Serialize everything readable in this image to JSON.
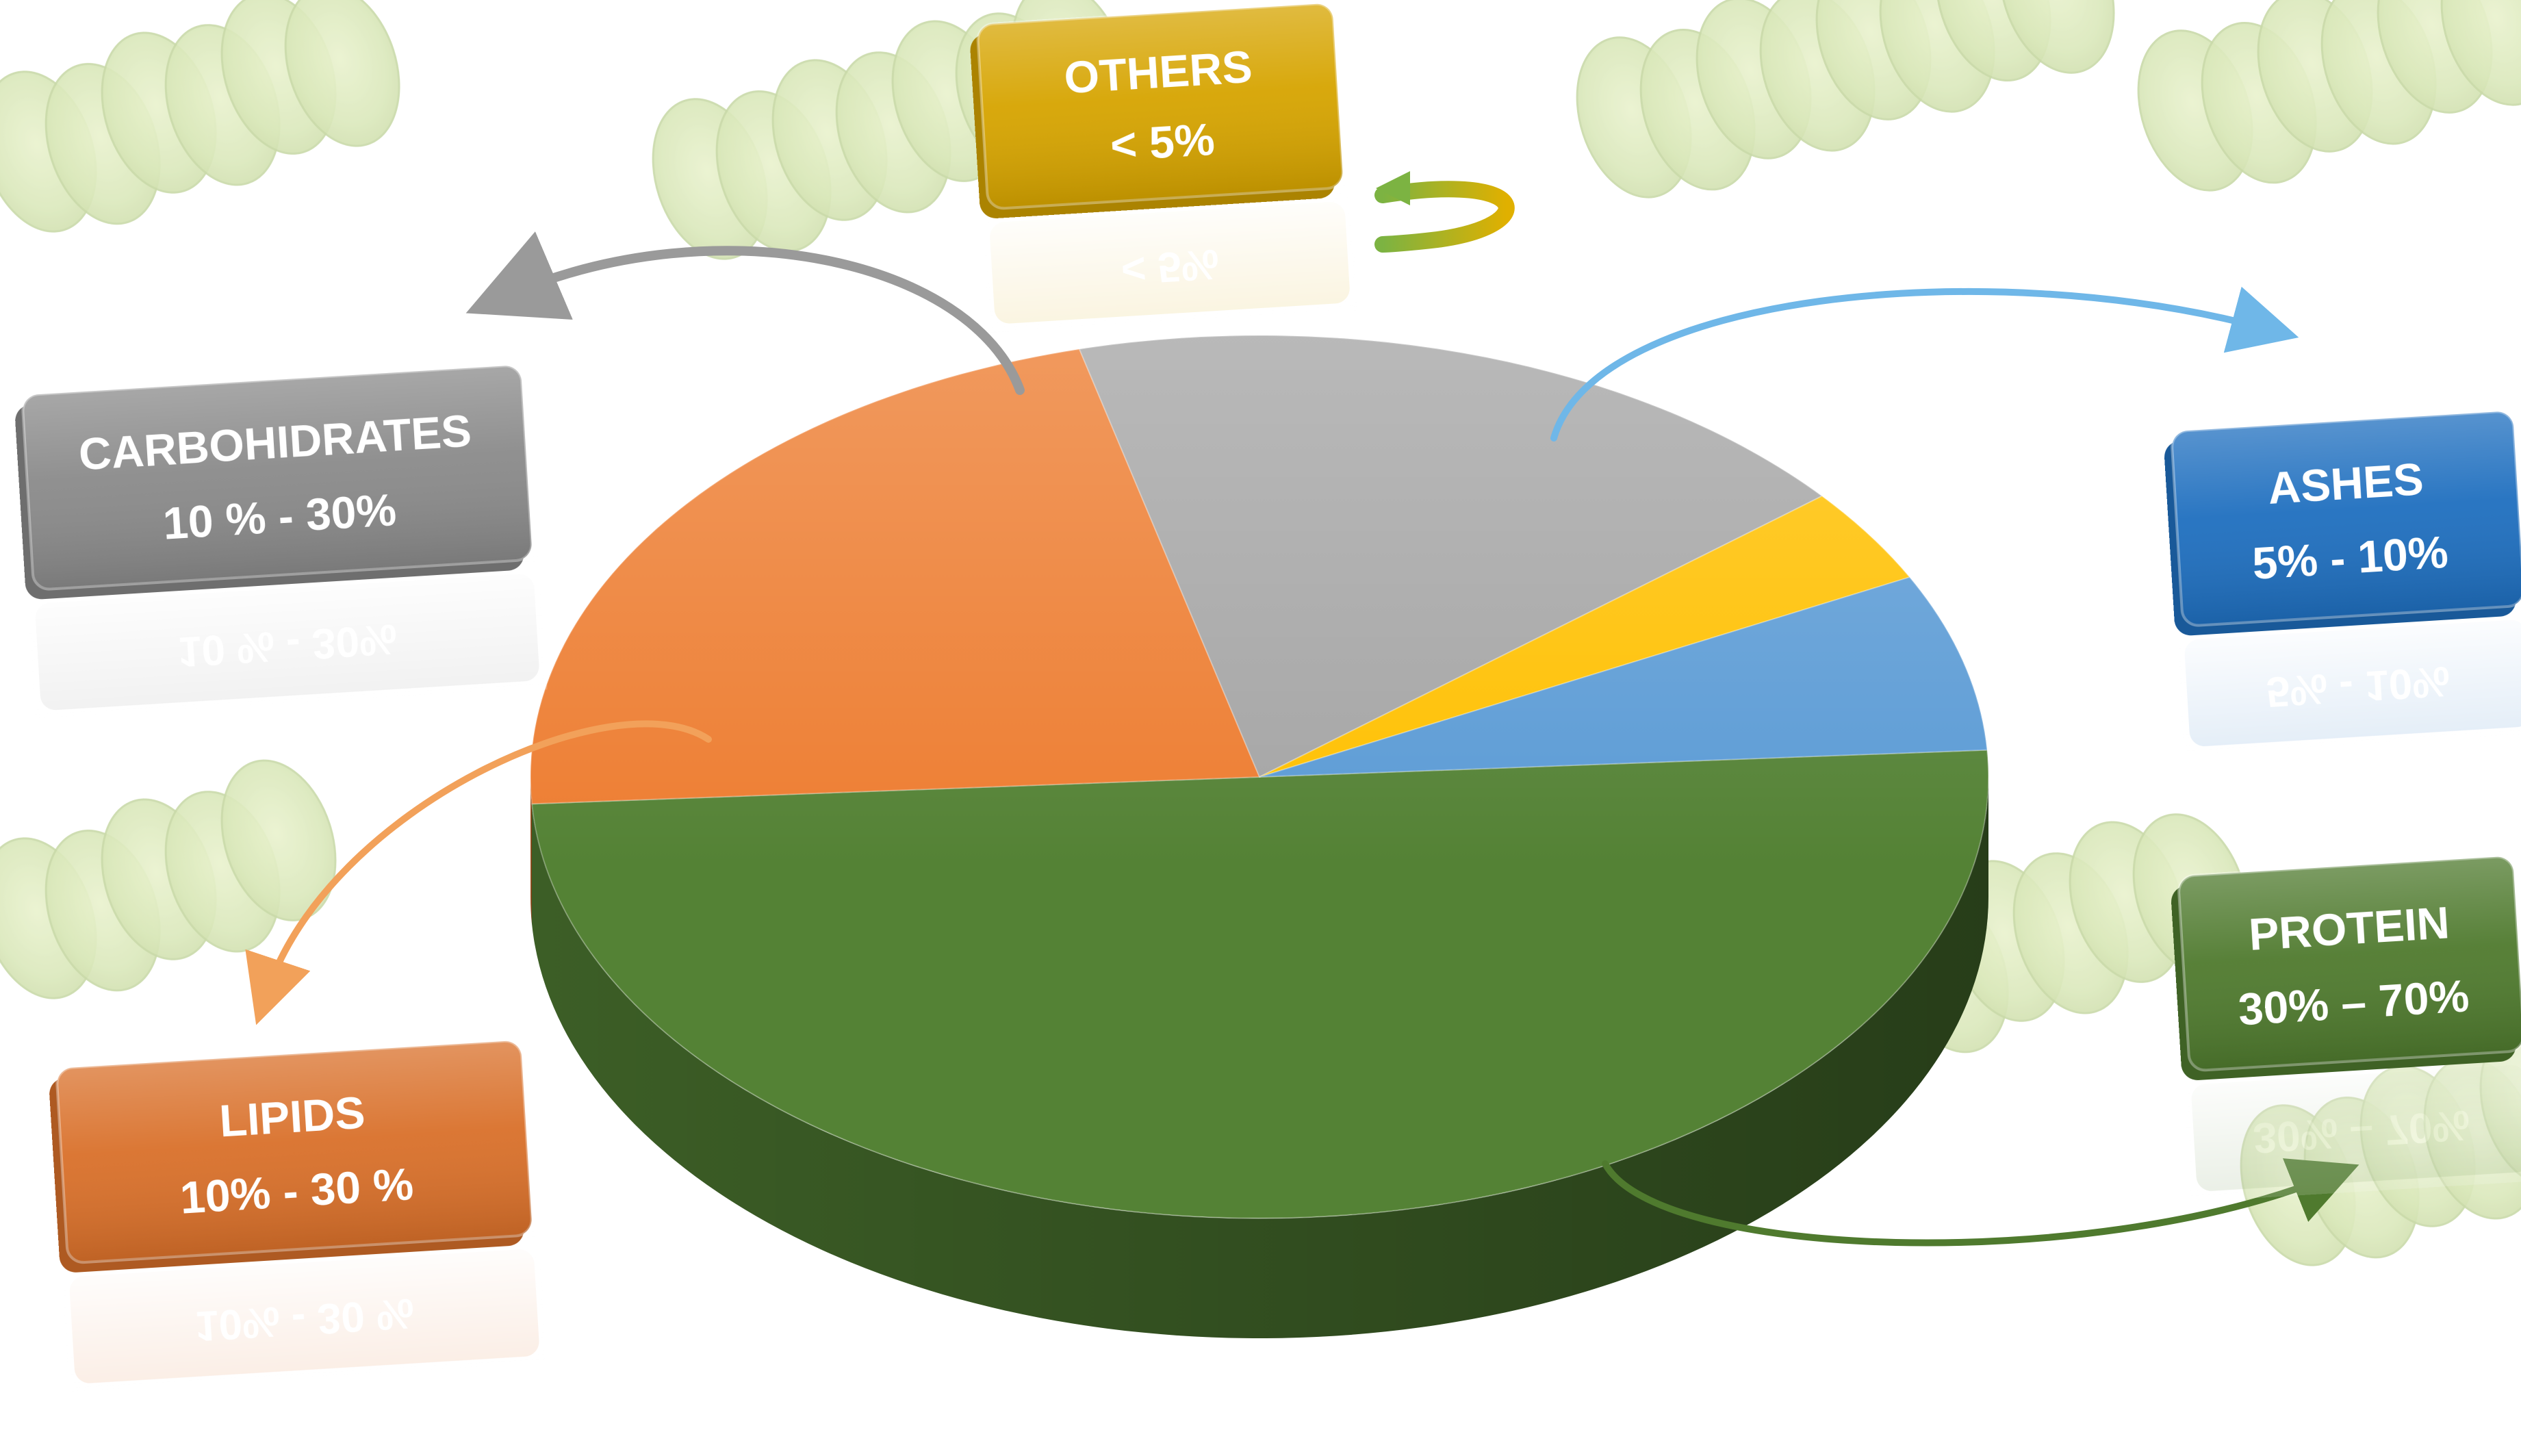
{
  "chart_data": {
    "type": "pie",
    "title": "",
    "categories": [
      "PROTEIN",
      "LIPIDS",
      "CARBOHIDRATES",
      "OTHERS",
      "ASHES"
    ],
    "values": [
      50,
      22,
      18,
      3.5,
      6.5
    ],
    "range_labels": [
      "30% – 70%",
      "10% - 30 %",
      "10 % - 30%",
      "< 5%",
      "5% - 10%"
    ],
    "colors": [
      "#548235",
      "#ED7D31",
      "#A5A5A5",
      "#FFC000",
      "#5B9BD5"
    ],
    "callout_colors": [
      "#4F7A2E",
      "#D9702A",
      "#8A8A8A",
      "#D6A400",
      "#1F6FBF"
    ],
    "start_angle_deg": -3.5,
    "three_d": true
  }
}
